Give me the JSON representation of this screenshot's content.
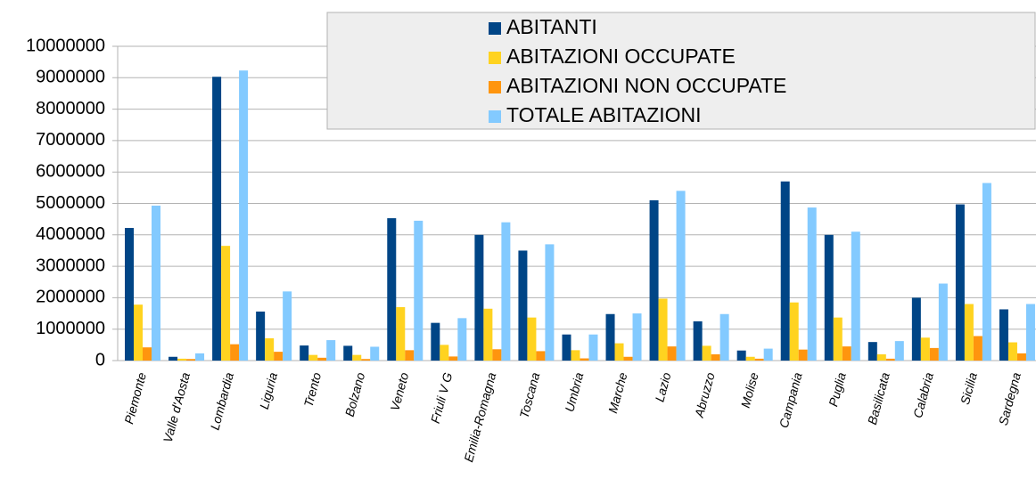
{
  "chart_data": {
    "type": "bar",
    "categories": [
      "Piemonte",
      "Valle d'Aosta",
      "Lombardia",
      "Liguria",
      "Trento",
      "Bolzano",
      "Veneto",
      "Friuli V G",
      "Emilia-Romagna",
      "Toscana",
      "Umbria",
      "Marche",
      "Lazio",
      "Abruzzo",
      "Molise",
      "Campania",
      "Puglia",
      "Basilicata",
      "Calabria",
      "Sicilia",
      "Sardegna"
    ],
    "series": [
      {
        "name": "ABITANTI",
        "color": "#004586",
        "values": [
          4220000,
          120000,
          9030000,
          1560000,
          480000,
          470000,
          4530000,
          1200000,
          4000000,
          3500000,
          830000,
          1480000,
          5100000,
          1250000,
          320000,
          5700000,
          4000000,
          590000,
          2000000,
          4970000,
          1630000
        ]
      },
      {
        "name": "ABITAZIONI OCCUPATE",
        "color": "#ffd320",
        "values": [
          1780000,
          60000,
          3650000,
          710000,
          180000,
          180000,
          1700000,
          500000,
          1650000,
          1370000,
          330000,
          550000,
          1970000,
          470000,
          120000,
          1850000,
          1370000,
          200000,
          730000,
          1800000,
          580000
        ]
      },
      {
        "name": "ABITAZIONI NON OCCUPATE",
        "color": "#ff950e",
        "values": [
          420000,
          50000,
          520000,
          280000,
          90000,
          50000,
          330000,
          130000,
          360000,
          300000,
          70000,
          120000,
          450000,
          200000,
          60000,
          350000,
          450000,
          60000,
          400000,
          780000,
          230000
        ]
      },
      {
        "name": "TOTALE ABITAZIONI",
        "color": "#83caff",
        "values": [
          4930000,
          230000,
          9230000,
          2200000,
          650000,
          440000,
          4450000,
          1350000,
          4400000,
          3700000,
          830000,
          1500000,
          5400000,
          1480000,
          380000,
          4870000,
          4100000,
          620000,
          2450000,
          5650000,
          1800000
        ]
      }
    ],
    "ylim": [
      0,
      10000000
    ],
    "yticks": [
      0,
      1000000,
      2000000,
      3000000,
      4000000,
      5000000,
      6000000,
      7000000,
      8000000,
      9000000,
      10000000
    ],
    "grid": true,
    "legend": "top-right"
  }
}
